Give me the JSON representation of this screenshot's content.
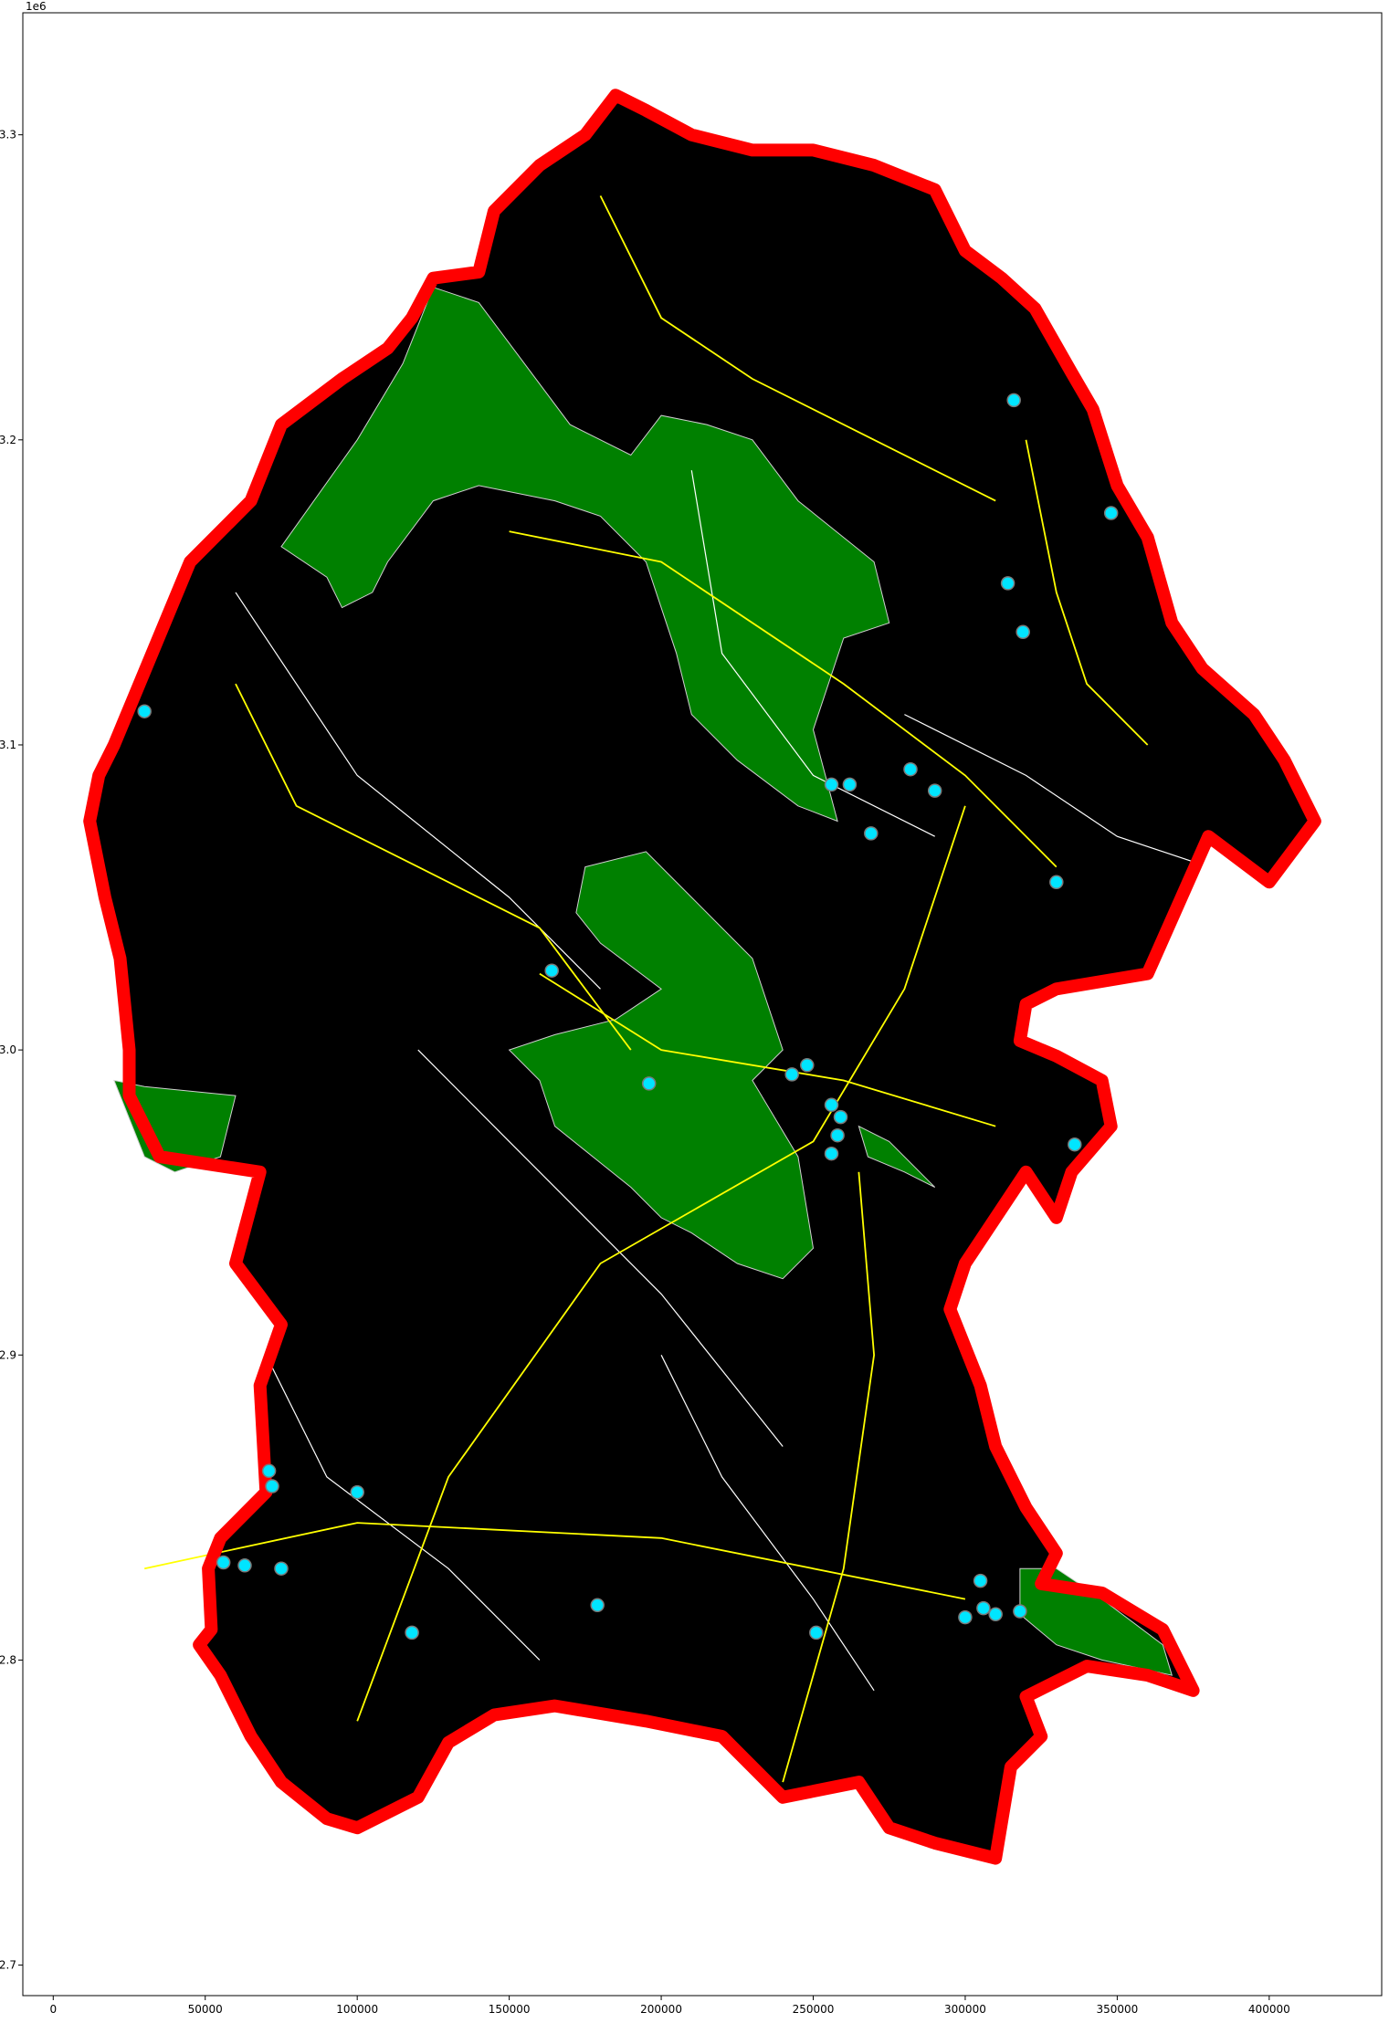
{
  "chart_data": {
    "type": "map",
    "title": "",
    "xlabel": "",
    "ylabel": "",
    "xlim": [
      -10000,
      437000
    ],
    "ylim": [
      2690000,
      3340000
    ],
    "y_offset_label": "1e6",
    "x_ticks": [
      0,
      50000,
      100000,
      150000,
      200000,
      250000,
      300000,
      350000,
      400000
    ],
    "x_tick_labels": [
      "0",
      "50000",
      "100000",
      "150000",
      "200000",
      "250000",
      "300000",
      "350000",
      "400000"
    ],
    "y_ticks": [
      2700000,
      2800000,
      2900000,
      3000000,
      3100000,
      3200000,
      3300000
    ],
    "y_tick_labels": [
      "2.7",
      "2.8",
      "2.9",
      "3.0",
      "3.1",
      "3.2",
      "3.3"
    ],
    "grid": false,
    "colors": {
      "background": "#000000",
      "boundary": "#ff0000",
      "areas": "#008000",
      "roads": "#ffff00",
      "white_lines": "#ffffff",
      "points": "#00e5ff"
    },
    "layers": {
      "boundary": [
        [
          51000,
          2830000
        ],
        [
          55000,
          2840000
        ],
        [
          70000,
          2855000
        ],
        [
          68000,
          2890000
        ],
        [
          75000,
          2910000
        ],
        [
          60000,
          2930000
        ],
        [
          68000,
          2960000
        ],
        [
          35000,
          2965000
        ],
        [
          25000,
          2985000
        ],
        [
          25000,
          3000000
        ],
        [
          22000,
          3030000
        ],
        [
          17000,
          3050000
        ],
        [
          12000,
          3075000
        ],
        [
          15000,
          3090000
        ],
        [
          20000,
          3100000
        ],
        [
          45000,
          3160000
        ],
        [
          65000,
          3180000
        ],
        [
          75000,
          3205000
        ],
        [
          95000,
          3220000
        ],
        [
          110000,
          3230000
        ],
        [
          118000,
          3240000
        ],
        [
          125000,
          3253000
        ],
        [
          140000,
          3255000
        ],
        [
          145000,
          3275000
        ],
        [
          160000,
          3290000
        ],
        [
          175000,
          3300000
        ],
        [
          185000,
          3313000
        ],
        [
          195000,
          3308000
        ],
        [
          210000,
          3300000
        ],
        [
          230000,
          3295000
        ],
        [
          250000,
          3295000
        ],
        [
          270000,
          3290000
        ],
        [
          290000,
          3282000
        ],
        [
          300000,
          3262000
        ],
        [
          312000,
          3253000
        ],
        [
          323000,
          3243000
        ],
        [
          335000,
          3222000
        ],
        [
          342000,
          3210000
        ],
        [
          350000,
          3185000
        ],
        [
          360000,
          3168000
        ],
        [
          368000,
          3140000
        ],
        [
          378000,
          3125000
        ],
        [
          395000,
          3110000
        ],
        [
          405000,
          3095000
        ],
        [
          415000,
          3075000
        ],
        [
          400000,
          3055000
        ],
        [
          380000,
          3070000
        ],
        [
          360000,
          3025000
        ],
        [
          330000,
          3020000
        ],
        [
          320000,
          3015000
        ],
        [
          318000,
          3003000
        ],
        [
          330000,
          2998000
        ],
        [
          345000,
          2990000
        ],
        [
          348000,
          2975000
        ],
        [
          335000,
          2960000
        ],
        [
          330000,
          2945000
        ],
        [
          320000,
          2960000
        ],
        [
          300000,
          2930000
        ],
        [
          295000,
          2915000
        ],
        [
          305000,
          2890000
        ],
        [
          310000,
          2870000
        ],
        [
          320000,
          2850000
        ],
        [
          330000,
          2835000
        ],
        [
          325000,
          2825000
        ],
        [
          345000,
          2822000
        ],
        [
          365000,
          2810000
        ],
        [
          375000,
          2790000
        ],
        [
          360000,
          2795000
        ],
        [
          340000,
          2798000
        ],
        [
          320000,
          2788000
        ],
        [
          325000,
          2775000
        ],
        [
          315000,
          2765000
        ],
        [
          310000,
          2735000
        ],
        [
          290000,
          2740000
        ],
        [
          275000,
          2745000
        ],
        [
          265000,
          2760000
        ],
        [
          240000,
          2755000
        ],
        [
          220000,
          2775000
        ],
        [
          195000,
          2780000
        ],
        [
          165000,
          2785000
        ],
        [
          145000,
          2782000
        ],
        [
          130000,
          2773000
        ],
        [
          120000,
          2755000
        ],
        [
          100000,
          2745000
        ],
        [
          90000,
          2748000
        ],
        [
          75000,
          2760000
        ],
        [
          65000,
          2775000
        ],
        [
          55000,
          2795000
        ],
        [
          48000,
          2805000
        ],
        [
          52000,
          2810000
        ]
      ],
      "green_areas": [
        [
          [
            75000,
            3165000
          ],
          [
            100000,
            3200000
          ],
          [
            115000,
            3225000
          ],
          [
            125000,
            3250000
          ],
          [
            140000,
            3245000
          ],
          [
            155000,
            3225000
          ],
          [
            170000,
            3205000
          ],
          [
            180000,
            3200000
          ],
          [
            190000,
            3195000
          ],
          [
            200000,
            3208000
          ],
          [
            215000,
            3205000
          ],
          [
            230000,
            3200000
          ],
          [
            245000,
            3180000
          ],
          [
            270000,
            3160000
          ],
          [
            275000,
            3140000
          ],
          [
            260000,
            3135000
          ],
          [
            250000,
            3105000
          ],
          [
            258000,
            3075000
          ],
          [
            245000,
            3080000
          ],
          [
            225000,
            3095000
          ],
          [
            210000,
            3110000
          ],
          [
            205000,
            3130000
          ],
          [
            195000,
            3160000
          ],
          [
            180000,
            3175000
          ],
          [
            165000,
            3180000
          ],
          [
            140000,
            3185000
          ],
          [
            125000,
            3180000
          ],
          [
            110000,
            3160000
          ],
          [
            105000,
            3150000
          ],
          [
            95000,
            3145000
          ],
          [
            90000,
            3155000
          ]
        ],
        [
          [
            20000,
            2990000
          ],
          [
            30000,
            2965000
          ],
          [
            40000,
            2960000
          ],
          [
            55000,
            2965000
          ],
          [
            60000,
            2985000
          ],
          [
            30000,
            2988000
          ]
        ],
        [
          [
            175000,
            3060000
          ],
          [
            195000,
            3065000
          ],
          [
            210000,
            3050000
          ],
          [
            230000,
            3030000
          ],
          [
            240000,
            3000000
          ],
          [
            230000,
            2990000
          ],
          [
            245000,
            2965000
          ],
          [
            250000,
            2935000
          ],
          [
            240000,
            2925000
          ],
          [
            225000,
            2930000
          ],
          [
            210000,
            2940000
          ],
          [
            200000,
            2945000
          ],
          [
            190000,
            2955000
          ],
          [
            165000,
            2975000
          ],
          [
            160000,
            2990000
          ],
          [
            150000,
            3000000
          ],
          [
            165000,
            3005000
          ],
          [
            185000,
            3010000
          ],
          [
            200000,
            3020000
          ],
          [
            180000,
            3035000
          ],
          [
            172000,
            3045000
          ]
        ],
        [
          [
            265000,
            2975000
          ],
          [
            275000,
            2970000
          ],
          [
            290000,
            2955000
          ],
          [
            280000,
            2960000
          ],
          [
            268000,
            2965000
          ]
        ],
        [
          [
            318000,
            2830000
          ],
          [
            330000,
            2830000
          ],
          [
            345000,
            2820000
          ],
          [
            365000,
            2805000
          ],
          [
            368000,
            2795000
          ],
          [
            345000,
            2800000
          ],
          [
            330000,
            2805000
          ],
          [
            318000,
            2815000
          ]
        ]
      ],
      "roads": [
        [
          [
            30000,
            2830000
          ],
          [
            100000,
            2845000
          ],
          [
            200000,
            2840000
          ],
          [
            300000,
            2820000
          ]
        ],
        [
          [
            160000,
            3025000
          ],
          [
            200000,
            3000000
          ],
          [
            260000,
            2990000
          ],
          [
            310000,
            2975000
          ]
        ],
        [
          [
            150000,
            3170000
          ],
          [
            200000,
            3160000
          ],
          [
            260000,
            3120000
          ],
          [
            300000,
            3090000
          ],
          [
            330000,
            3060000
          ]
        ],
        [
          [
            320000,
            3200000
          ],
          [
            330000,
            3150000
          ],
          [
            340000,
            3120000
          ],
          [
            360000,
            3100000
          ]
        ],
        [
          [
            100000,
            2780000
          ],
          [
            130000,
            2860000
          ],
          [
            180000,
            2930000
          ],
          [
            250000,
            2970000
          ],
          [
            280000,
            3020000
          ],
          [
            300000,
            3080000
          ]
        ],
        [
          [
            60000,
            3120000
          ],
          [
            80000,
            3080000
          ],
          [
            120000,
            3060000
          ],
          [
            160000,
            3040000
          ],
          [
            190000,
            3000000
          ]
        ],
        [
          [
            240000,
            2760000
          ],
          [
            260000,
            2830000
          ],
          [
            270000,
            2900000
          ],
          [
            265000,
            2960000
          ]
        ],
        [
          [
            180000,
            3280000
          ],
          [
            200000,
            3240000
          ],
          [
            230000,
            3220000
          ],
          [
            270000,
            3200000
          ],
          [
            310000,
            3180000
          ]
        ]
      ],
      "white_lines": [
        [
          [
            60000,
            3150000
          ],
          [
            100000,
            3090000
          ],
          [
            150000,
            3050000
          ],
          [
            180000,
            3020000
          ]
        ],
        [
          [
            210000,
            3190000
          ],
          [
            220000,
            3130000
          ],
          [
            250000,
            3090000
          ],
          [
            290000,
            3070000
          ]
        ],
        [
          [
            120000,
            3000000
          ],
          [
            150000,
            2970000
          ],
          [
            200000,
            2920000
          ],
          [
            240000,
            2870000
          ]
        ],
        [
          [
            200000,
            2900000
          ],
          [
            220000,
            2860000
          ],
          [
            250000,
            2820000
          ],
          [
            270000,
            2790000
          ]
        ],
        [
          [
            280000,
            3110000
          ],
          [
            320000,
            3090000
          ],
          [
            350000,
            3070000
          ],
          [
            380000,
            3060000
          ]
        ],
        [
          [
            70000,
            2900000
          ],
          [
            90000,
            2860000
          ],
          [
            130000,
            2830000
          ],
          [
            160000,
            2800000
          ]
        ]
      ],
      "points": [
        [
          30000,
          3111000
        ],
        [
          316000,
          3213000
        ],
        [
          348000,
          3176000
        ],
        [
          314000,
          3153000
        ],
        [
          319000,
          3137000
        ],
        [
          256000,
          3087000
        ],
        [
          262000,
          3087000
        ],
        [
          282000,
          3092000
        ],
        [
          290000,
          3085000
        ],
        [
          269000,
          3071000
        ],
        [
          330000,
          3055000
        ],
        [
          164000,
          3026000
        ],
        [
          196000,
          2989000
        ],
        [
          243000,
          2992000
        ],
        [
          248000,
          2995000
        ],
        [
          256000,
          2982000
        ],
        [
          259000,
          2978000
        ],
        [
          258000,
          2972000
        ],
        [
          256000,
          2966000
        ],
        [
          336000,
          2969000
        ],
        [
          71000,
          2862000
        ],
        [
          72000,
          2857000
        ],
        [
          100000,
          2855000
        ],
        [
          56000,
          2832000
        ],
        [
          63000,
          2831000
        ],
        [
          75000,
          2830000
        ],
        [
          179000,
          2818000
        ],
        [
          118000,
          2809000
        ],
        [
          251000,
          2809000
        ],
        [
          300000,
          2814000
        ],
        [
          305000,
          2826000
        ],
        [
          306000,
          2817000
        ],
        [
          310000,
          2815000
        ],
        [
          318000,
          2816000
        ]
      ]
    }
  }
}
